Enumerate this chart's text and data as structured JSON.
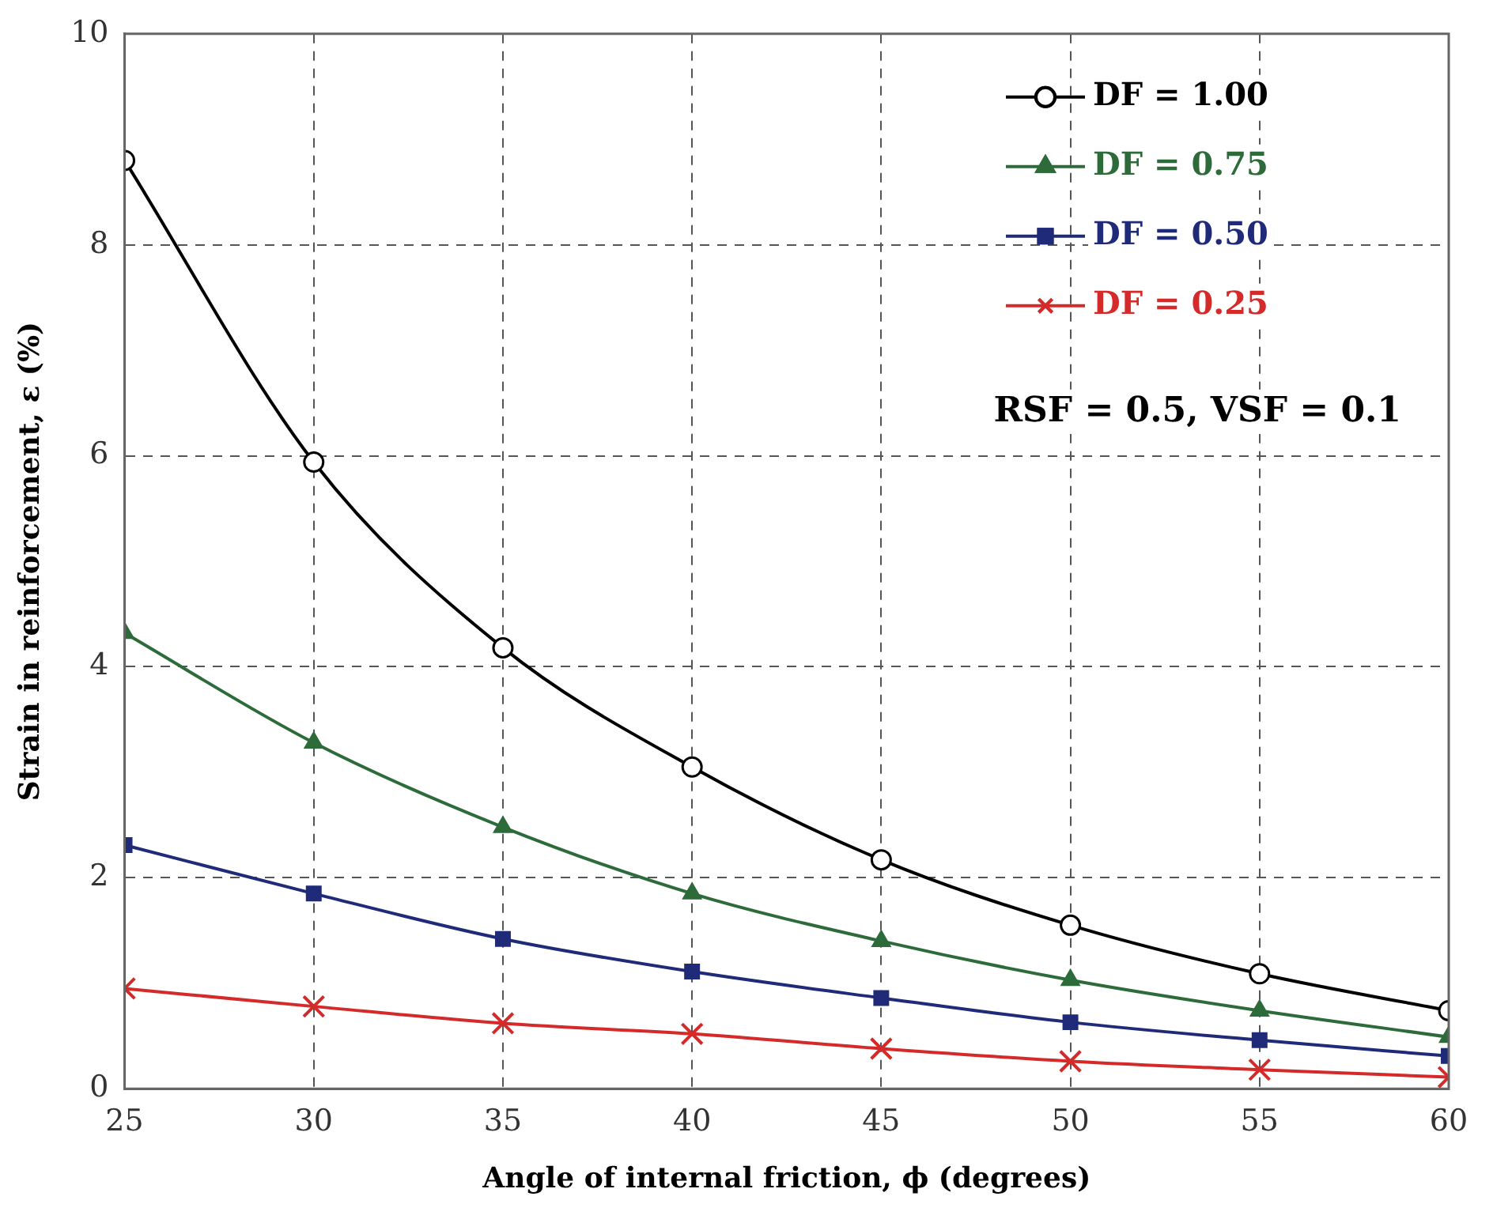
{
  "chart_data": {
    "type": "line",
    "xlabel": "Angle of internal friction, ϕ (degrees)",
    "ylabel": "Strain in reinforcement, ε (%)",
    "x": [
      25,
      30,
      35,
      40,
      45,
      50,
      55,
      60
    ],
    "xlim": [
      25,
      60
    ],
    "xticks": [
      25,
      30,
      35,
      40,
      45,
      50,
      55,
      60
    ],
    "ylim": [
      0,
      10
    ],
    "yticks": [
      0,
      2,
      4,
      6,
      8,
      10
    ],
    "grid": true,
    "legend": "top right",
    "line_style": "solid",
    "annotations": [
      "RSF = 0.5, VSF = 0.1"
    ],
    "series": [
      {
        "name": "DF = 1.00",
        "color": "#000000",
        "marker": "circle",
        "values": [
          8.8,
          5.94,
          4.18,
          3.05,
          2.17,
          1.55,
          1.09,
          0.74
        ]
      },
      {
        "name": "DF = 0.75",
        "color": "#2e6b3a",
        "marker": "triangle",
        "values": [
          4.32,
          3.28,
          2.48,
          1.85,
          1.4,
          1.03,
          0.74,
          0.49
        ]
      },
      {
        "name": "DF = 0.50",
        "color": "#1f2a78",
        "marker": "square",
        "values": [
          2.31,
          1.85,
          1.42,
          1.11,
          0.86,
          0.63,
          0.46,
          0.31
        ]
      },
      {
        "name": "DF = 0.25",
        "color": "#d42a2a",
        "marker": "cross",
        "values": [
          0.95,
          0.78,
          0.62,
          0.52,
          0.38,
          0.26,
          0.18,
          0.11
        ]
      }
    ]
  }
}
